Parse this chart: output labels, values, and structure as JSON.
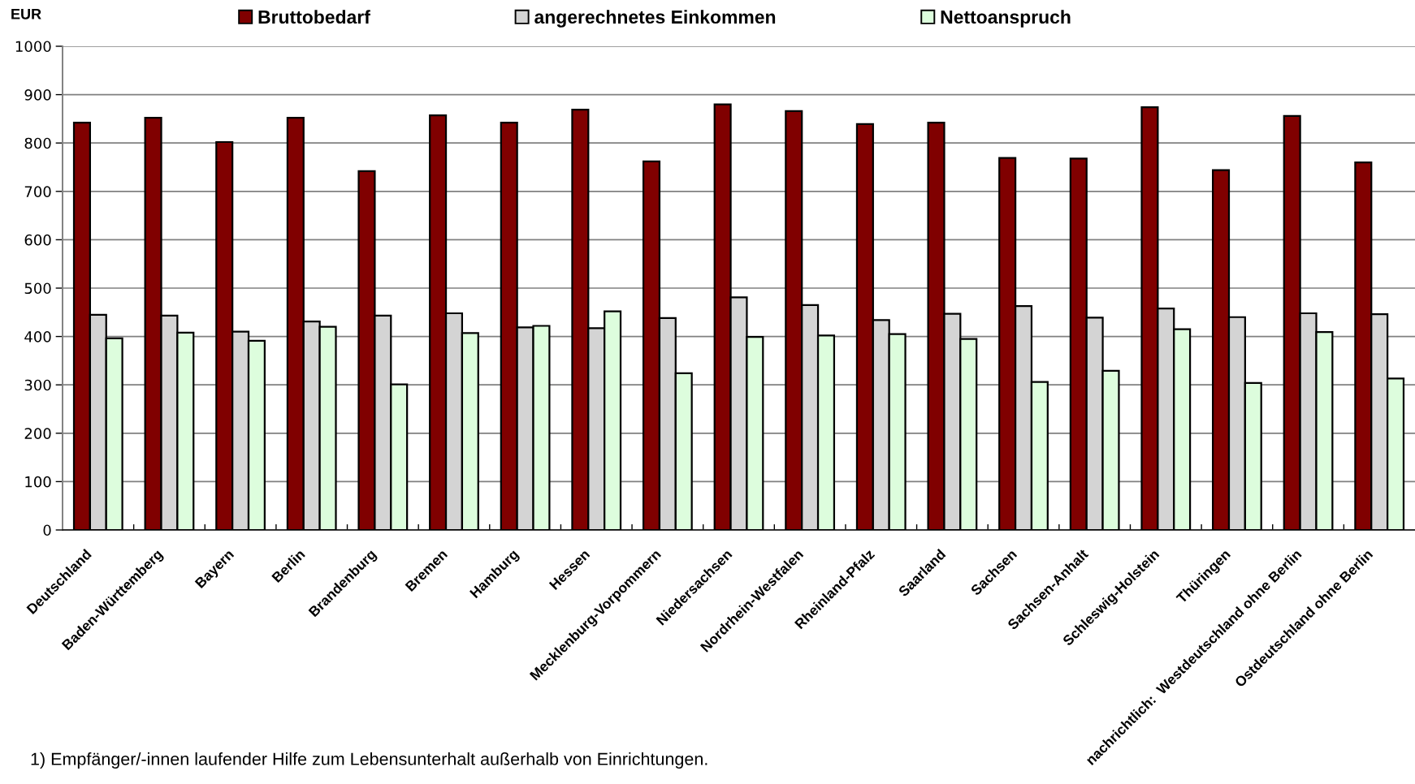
{
  "chart_data": {
    "type": "bar",
    "ylabel": "EUR",
    "categories": [
      "Deutschland",
      "Baden-Württemberg",
      "Bayern",
      "Berlin",
      "Brandenburg",
      "Bremen",
      "Hamburg",
      "Hessen",
      "Mecklenburg-Vorpommern",
      "Niedersachsen",
      "Nordrhein-Westfalen",
      "Rheinland-Pfalz",
      "Saarland",
      "Sachsen",
      "Sachsen-Anhalt",
      "Schleswig-Holstein",
      "Thüringen",
      "nachrichtlich:  Westdeutschland ohne Berlin",
      "Ostdeutschland ohne Berlin"
    ],
    "series": [
      {
        "name": "Bruttobedarf",
        "color": "#800000",
        "values": [
          842,
          852,
          802,
          852,
          742,
          857,
          842,
          869,
          762,
          880,
          866,
          839,
          842,
          769,
          768,
          874,
          744,
          856,
          760
        ]
      },
      {
        "name": "angerechnetes Einkommen",
        "color": "#d4d4d4",
        "values": [
          445,
          443,
          410,
          431,
          443,
          448,
          419,
          417,
          438,
          481,
          465,
          434,
          447,
          463,
          439,
          458,
          440,
          448,
          446
        ]
      },
      {
        "name": "Nettoanspruch",
        "color": "#ddfddd",
        "values": [
          396,
          408,
          391,
          420,
          301,
          407,
          422,
          452,
          324,
          399,
          402,
          405,
          395,
          306,
          329,
          415,
          304,
          409,
          313
        ]
      }
    ],
    "ylim": [
      0,
      1000
    ],
    "yticks": [
      0,
      100,
      200,
      300,
      400,
      500,
      600,
      700,
      800,
      900,
      1000
    ],
    "grid": "y",
    "legend": "top",
    "annotations": [
      "1) Empfänger/-innen laufender Hilfe zum Lebensunterhalt außerhalb von Einrichtungen."
    ]
  }
}
